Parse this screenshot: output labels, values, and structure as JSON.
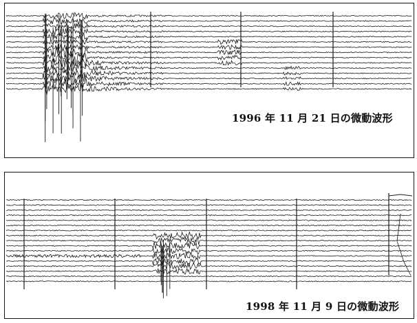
{
  "panels": [
    {
      "caption": "1996 年 11 月 21 日の微動波形"
    },
    {
      "caption": "1998 年 11 月 9 日の微動波形"
    }
  ],
  "colors": {
    "ink": "#1a1a1a",
    "background": "#ffffff"
  }
}
